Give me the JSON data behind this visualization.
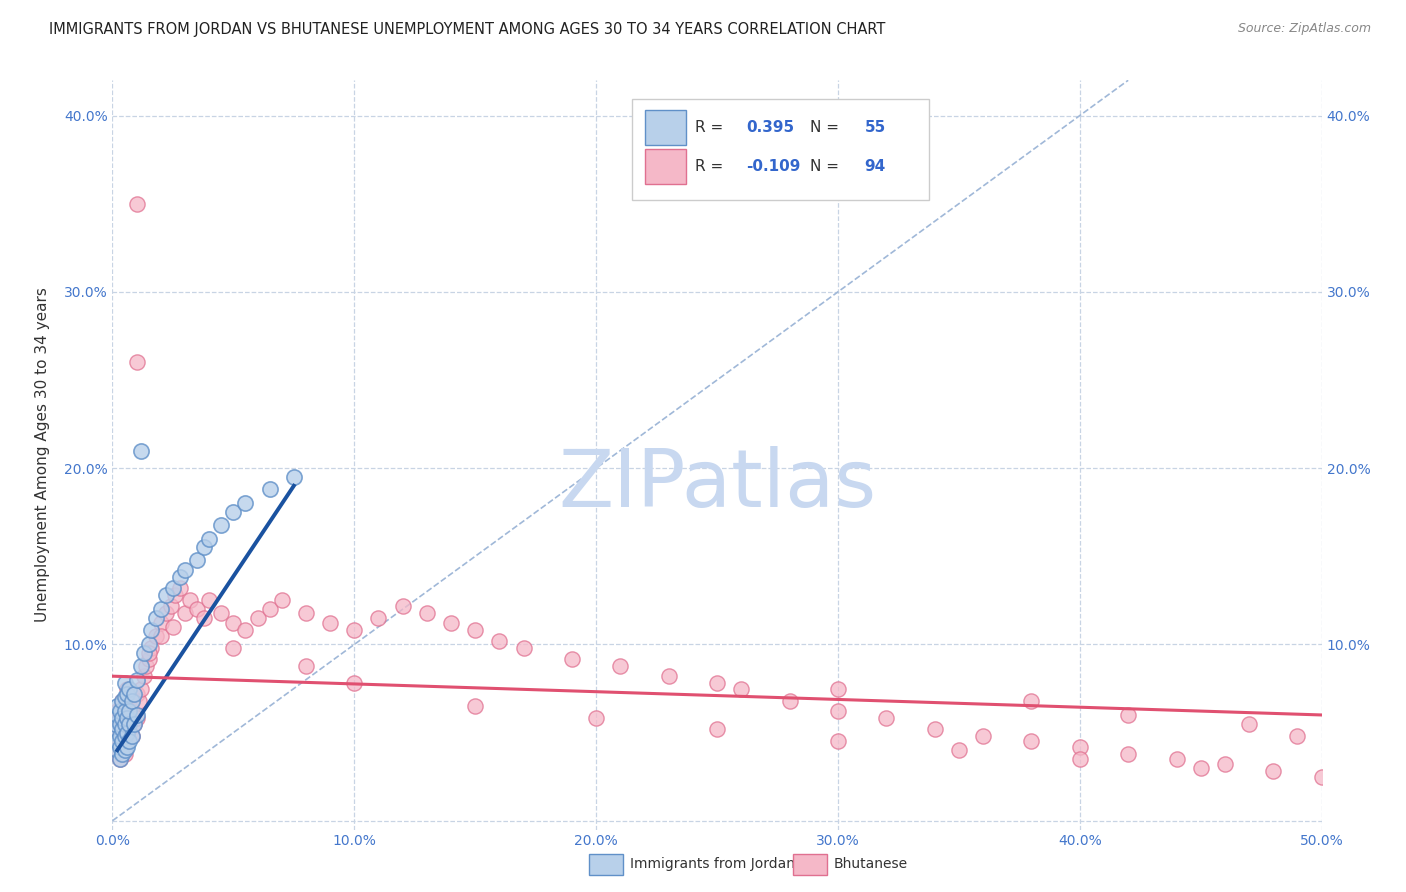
{
  "title": "IMMIGRANTS FROM JORDAN VS BHUTANESE UNEMPLOYMENT AMONG AGES 30 TO 34 YEARS CORRELATION CHART",
  "source": "Source: ZipAtlas.com",
  "ylabel": "Unemployment Among Ages 30 to 34 years",
  "xlim": [
    0,
    0.5
  ],
  "ylim": [
    -0.005,
    0.42
  ],
  "xticks": [
    0.0,
    0.1,
    0.2,
    0.3,
    0.4,
    0.5
  ],
  "yticks": [
    0.0,
    0.1,
    0.2,
    0.3,
    0.4
  ],
  "xtick_labels": [
    "0.0%",
    "10.0%",
    "20.0%",
    "30.0%",
    "40.0%",
    "50.0%"
  ],
  "ytick_labels": [
    "",
    "10.0%",
    "20.0%",
    "30.0%",
    "40.0%"
  ],
  "right_ytick_labels": [
    "",
    "10.0%",
    "20.0%",
    "30.0%",
    "40.0%"
  ],
  "jordan_R": 0.395,
  "jordan_N": 55,
  "bhutan_R": -0.109,
  "bhutan_N": 94,
  "jordan_color": "#b8d0ea",
  "bhutan_color": "#f5b8c8",
  "jordan_edge": "#6090c8",
  "bhutan_edge": "#e07090",
  "jordan_trend_color": "#1a52a0",
  "bhutan_trend_color": "#e05070",
  "ref_line_color": "#a0b8d8",
  "background_color": "#ffffff",
  "grid_color": "#c8d4e4",
  "title_color": "#222222",
  "source_color": "#888888",
  "axis_label_color": "#333333",
  "tick_color": "#4477cc",
  "jordan_x": [
    0.001,
    0.001,
    0.002,
    0.002,
    0.002,
    0.002,
    0.003,
    0.003,
    0.003,
    0.003,
    0.003,
    0.004,
    0.004,
    0.004,
    0.004,
    0.004,
    0.005,
    0.005,
    0.005,
    0.005,
    0.005,
    0.005,
    0.006,
    0.006,
    0.006,
    0.006,
    0.007,
    0.007,
    0.007,
    0.007,
    0.008,
    0.008,
    0.009,
    0.009,
    0.01,
    0.01,
    0.012,
    0.013,
    0.015,
    0.016,
    0.018,
    0.02,
    0.022,
    0.025,
    0.028,
    0.03,
    0.035,
    0.038,
    0.04,
    0.045,
    0.05,
    0.055,
    0.065,
    0.075,
    0.012
  ],
  "jordan_y": [
    0.05,
    0.055,
    0.04,
    0.045,
    0.06,
    0.065,
    0.035,
    0.042,
    0.048,
    0.055,
    0.062,
    0.038,
    0.045,
    0.052,
    0.058,
    0.068,
    0.04,
    0.048,
    0.055,
    0.062,
    0.07,
    0.078,
    0.042,
    0.05,
    0.058,
    0.072,
    0.045,
    0.055,
    0.062,
    0.075,
    0.048,
    0.068,
    0.055,
    0.072,
    0.06,
    0.08,
    0.088,
    0.095,
    0.1,
    0.108,
    0.115,
    0.12,
    0.128,
    0.132,
    0.138,
    0.142,
    0.148,
    0.155,
    0.16,
    0.168,
    0.175,
    0.18,
    0.188,
    0.195,
    0.21
  ],
  "bhutan_x": [
    0.001,
    0.001,
    0.002,
    0.002,
    0.002,
    0.003,
    0.003,
    0.003,
    0.004,
    0.004,
    0.004,
    0.005,
    0.005,
    0.005,
    0.006,
    0.006,
    0.006,
    0.007,
    0.007,
    0.008,
    0.008,
    0.009,
    0.01,
    0.01,
    0.011,
    0.012,
    0.013,
    0.014,
    0.015,
    0.016,
    0.018,
    0.02,
    0.022,
    0.024,
    0.026,
    0.028,
    0.03,
    0.032,
    0.035,
    0.038,
    0.04,
    0.045,
    0.05,
    0.055,
    0.06,
    0.065,
    0.07,
    0.08,
    0.09,
    0.1,
    0.11,
    0.12,
    0.13,
    0.14,
    0.15,
    0.16,
    0.17,
    0.19,
    0.21,
    0.23,
    0.25,
    0.26,
    0.28,
    0.3,
    0.32,
    0.34,
    0.36,
    0.38,
    0.4,
    0.42,
    0.44,
    0.46,
    0.48,
    0.5,
    0.015,
    0.02,
    0.025,
    0.05,
    0.08,
    0.1,
    0.15,
    0.2,
    0.25,
    0.3,
    0.35,
    0.4,
    0.45,
    0.3,
    0.38,
    0.42,
    0.47,
    0.49,
    0.01,
    0.01
  ],
  "bhutan_y": [
    0.048,
    0.055,
    0.04,
    0.052,
    0.062,
    0.035,
    0.048,
    0.06,
    0.042,
    0.055,
    0.068,
    0.038,
    0.05,
    0.065,
    0.045,
    0.058,
    0.075,
    0.052,
    0.065,
    0.048,
    0.062,
    0.055,
    0.058,
    0.072,
    0.068,
    0.075,
    0.082,
    0.088,
    0.092,
    0.098,
    0.105,
    0.112,
    0.118,
    0.122,
    0.128,
    0.132,
    0.118,
    0.125,
    0.12,
    0.115,
    0.125,
    0.118,
    0.112,
    0.108,
    0.115,
    0.12,
    0.125,
    0.118,
    0.112,
    0.108,
    0.115,
    0.122,
    0.118,
    0.112,
    0.108,
    0.102,
    0.098,
    0.092,
    0.088,
    0.082,
    0.078,
    0.075,
    0.068,
    0.062,
    0.058,
    0.052,
    0.048,
    0.045,
    0.042,
    0.038,
    0.035,
    0.032,
    0.028,
    0.025,
    0.095,
    0.105,
    0.11,
    0.098,
    0.088,
    0.078,
    0.065,
    0.058,
    0.052,
    0.045,
    0.04,
    0.035,
    0.03,
    0.075,
    0.068,
    0.06,
    0.055,
    0.048,
    0.35,
    0.26
  ],
  "jordan_trend_x": [
    0.002,
    0.075
  ],
  "jordan_trend_y": [
    0.04,
    0.19
  ],
  "bhutan_trend_x": [
    0.0,
    0.5
  ],
  "bhutan_trend_y": [
    0.082,
    0.06
  ],
  "ref_line_x": [
    0.0,
    0.42
  ],
  "ref_line_y": [
    0.0,
    0.42
  ],
  "watermark": "ZIPatlas",
  "watermark_color": "#c8d8f0",
  "figsize": [
    14.06,
    8.92
  ],
  "dpi": 100
}
